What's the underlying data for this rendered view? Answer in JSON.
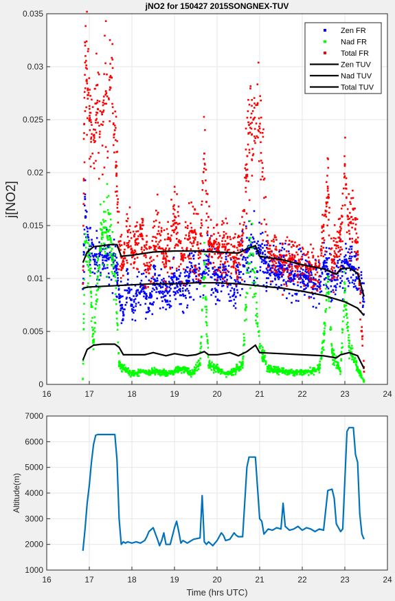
{
  "chart_data": [
    {
      "type": "scatter",
      "title": "jNO2 for 150427 2015SONGNEX-TUV",
      "xlabel": "",
      "ylabel": "j[NO2]",
      "xlim": [
        16,
        24
      ],
      "ylim": [
        0,
        0.035
      ],
      "xticks": [
        "16",
        "17",
        "18",
        "19",
        "20",
        "21",
        "22",
        "23",
        "24"
      ],
      "yticks": [
        "0",
        "0.005",
        "0.01",
        "0.015",
        "0.02",
        "0.025",
        "0.03",
        "0.035"
      ],
      "grid": true,
      "legend_position": "top-right",
      "series": [
        {
          "name": "Zen FR",
          "kind": "markers",
          "color": "#0000ff",
          "x": [
            16.85,
            16.9,
            17.0,
            17.1,
            17.2,
            17.3,
            17.4,
            17.5,
            17.6,
            17.7,
            17.8,
            17.9,
            18.0,
            18.2,
            18.4,
            18.6,
            18.8,
            19.0,
            19.2,
            19.4,
            19.6,
            19.8,
            20.0,
            20.2,
            20.4,
            20.6,
            20.8,
            21.0,
            21.2,
            21.4,
            21.6,
            21.8,
            22.0,
            22.2,
            22.4,
            22.5,
            22.7,
            22.9,
            23.0,
            23.2,
            23.35,
            23.45
          ],
          "y": [
            0.009,
            0.0175,
            0.0122,
            0.0118,
            0.012,
            0.0122,
            0.0121,
            0.012,
            0.0117,
            0.0085,
            0.0065,
            0.0095,
            0.0075,
            0.0092,
            0.0082,
            0.0098,
            0.0078,
            0.0105,
            0.0085,
            0.0112,
            0.0095,
            0.0118,
            0.0098,
            0.0109,
            0.0085,
            0.0118,
            0.0131,
            0.0125,
            0.0112,
            0.0103,
            0.0109,
            0.0102,
            0.0105,
            0.0098,
            0.0092,
            0.0115,
            0.0098,
            0.0108,
            0.0115,
            0.011,
            0.0095,
            0.0078
          ]
        },
        {
          "name": "Nad FR",
          "kind": "markers",
          "color": "#00ff00",
          "x": [
            16.85,
            16.9,
            17.0,
            17.1,
            17.2,
            17.3,
            17.4,
            17.5,
            17.6,
            17.7,
            17.8,
            17.9,
            18.0,
            18.2,
            18.4,
            18.6,
            18.8,
            19.0,
            19.2,
            19.4,
            19.6,
            19.7,
            19.8,
            20.0,
            20.2,
            20.4,
            20.6,
            20.75,
            20.85,
            21.0,
            21.2,
            21.4,
            21.6,
            21.8,
            22.0,
            22.2,
            22.4,
            22.5,
            22.6,
            22.7,
            22.9,
            23.0,
            23.1,
            23.3,
            23.45
          ],
          "y": [
            0.0005,
            0.0135,
            0.012,
            0.004,
            0.0102,
            0.0142,
            0.0148,
            0.0138,
            0.0105,
            0.0018,
            0.0015,
            0.0012,
            0.001,
            0.0012,
            0.0011,
            0.0013,
            0.001,
            0.0012,
            0.0015,
            0.001,
            0.002,
            0.0115,
            0.0018,
            0.0015,
            0.001,
            0.0013,
            0.0018,
            0.013,
            0.0122,
            0.0035,
            0.0015,
            0.0013,
            0.0012,
            0.0011,
            0.0012,
            0.0012,
            0.0015,
            0.004,
            0.0102,
            0.003,
            0.0012,
            0.0095,
            0.0035,
            0.0015,
            0.0003
          ]
        },
        {
          "name": "Total FR",
          "kind": "markers",
          "color": "#ff0000",
          "x": [
            16.85,
            16.9,
            17.0,
            17.1,
            17.2,
            17.3,
            17.4,
            17.5,
            17.6,
            17.7,
            17.8,
            17.9,
            18.0,
            18.2,
            18.4,
            18.6,
            18.8,
            19.0,
            19.2,
            19.4,
            19.6,
            19.7,
            19.8,
            20.0,
            20.2,
            20.4,
            20.6,
            20.75,
            20.85,
            20.95,
            21.2,
            21.4,
            21.6,
            21.8,
            22.0,
            22.2,
            22.4,
            22.5,
            22.6,
            22.7,
            22.9,
            23.0,
            23.1,
            23.2,
            23.3,
            23.45
          ],
          "y": [
            0.0095,
            0.0323,
            0.025,
            0.0235,
            0.026,
            0.0255,
            0.0275,
            0.028,
            0.024,
            0.0135,
            0.0112,
            0.0145,
            0.0125,
            0.0148,
            0.0105,
            0.0142,
            0.0115,
            0.0155,
            0.0118,
            0.0145,
            0.0125,
            0.0218,
            0.0135,
            0.0128,
            0.013,
            0.0115,
            0.0135,
            0.0245,
            0.025,
            0.0265,
            0.0125,
            0.0118,
            0.0115,
            0.0118,
            0.0112,
            0.0108,
            0.0112,
            0.0145,
            0.0185,
            0.0115,
            0.0135,
            0.0208,
            0.0145,
            0.0165,
            0.0125,
            0.0012
          ]
        },
        {
          "name": "Zen TUV",
          "kind": "line",
          "color": "#000000",
          "x": [
            16.85,
            16.95,
            17.1,
            17.3,
            17.5,
            17.65,
            17.75,
            18.0,
            18.5,
            19.0,
            19.5,
            20.0,
            20.5,
            20.7,
            20.9,
            21.0,
            21.5,
            22.0,
            22.5,
            22.8,
            22.9,
            23.1,
            23.3,
            23.45
          ],
          "y": [
            0.0115,
            0.0125,
            0.013,
            0.0131,
            0.0132,
            0.0132,
            0.0121,
            0.0122,
            0.0125,
            0.0126,
            0.0126,
            0.0125,
            0.0124,
            0.0128,
            0.0131,
            0.0121,
            0.0118,
            0.0113,
            0.0109,
            0.0104,
            0.0109,
            0.011,
            0.0105,
            0.0083
          ]
        },
        {
          "name": "Nad TUV",
          "kind": "line",
          "color": "#000000",
          "x": [
            16.85,
            17.0,
            17.5,
            18.0,
            18.5,
            19.0,
            19.5,
            20.0,
            20.5,
            21.0,
            21.5,
            22.0,
            22.5,
            23.0,
            23.3,
            23.45
          ],
          "y": [
            0.0091,
            0.0092,
            0.0093,
            0.0094,
            0.0095,
            0.0095,
            0.0096,
            0.0096,
            0.0095,
            0.0093,
            0.0091,
            0.0088,
            0.0084,
            0.0078,
            0.0072,
            0.0065
          ]
        },
        {
          "name": "Total TUV",
          "kind": "line",
          "color": "#000000",
          "x": [
            16.85,
            16.95,
            17.1,
            17.3,
            17.6,
            17.7,
            17.8,
            18.0,
            18.3,
            18.5,
            18.8,
            19.0,
            19.3,
            19.5,
            19.7,
            19.8,
            20.0,
            20.3,
            20.5,
            20.7,
            20.9,
            21.0,
            21.5,
            22.0,
            22.5,
            22.8,
            22.9,
            23.1,
            23.3,
            23.45
          ],
          "y": [
            0.0023,
            0.0033,
            0.0037,
            0.0038,
            0.0038,
            0.0035,
            0.0028,
            0.0028,
            0.0028,
            0.003,
            0.0027,
            0.0029,
            0.0027,
            0.0028,
            0.0031,
            0.0028,
            0.0028,
            0.003,
            0.0027,
            0.0031,
            0.0037,
            0.003,
            0.0029,
            0.0028,
            0.0027,
            0.0025,
            0.0028,
            0.003,
            0.0027,
            0.0015
          ]
        }
      ]
    },
    {
      "type": "line",
      "title": "",
      "xlabel": "Time (hrs UTC)",
      "ylabel": "Altitude(m)",
      "xlim": [
        16,
        24
      ],
      "ylim": [
        1000,
        7000
      ],
      "xticks": [
        "16",
        "17",
        "18",
        "19",
        "20",
        "21",
        "22",
        "23",
        "24"
      ],
      "yticks": [
        "1000",
        "2000",
        "3000",
        "4000",
        "5000",
        "6000",
        "7000"
      ],
      "grid": true,
      "series": [
        {
          "color": "#0072bd",
          "x": [
            16.85,
            16.9,
            16.95,
            17.0,
            17.05,
            17.1,
            17.15,
            17.2,
            17.4,
            17.6,
            17.65,
            17.7,
            17.75,
            17.8,
            17.85,
            17.9,
            18.0,
            18.1,
            18.2,
            18.3,
            18.35,
            18.4,
            18.5,
            18.6,
            18.65,
            18.7,
            18.75,
            18.8,
            18.9,
            19.0,
            19.05,
            19.1,
            19.15,
            19.2,
            19.3,
            19.45,
            19.6,
            19.65,
            19.7,
            19.75,
            19.8,
            19.9,
            20.0,
            20.1,
            20.15,
            20.2,
            20.3,
            20.4,
            20.45,
            20.5,
            20.6,
            20.7,
            20.75,
            20.8,
            20.9,
            20.95,
            21.0,
            21.05,
            21.1,
            21.2,
            21.3,
            21.4,
            21.5,
            21.55,
            21.6,
            21.7,
            21.8,
            21.9,
            22.0,
            22.1,
            22.2,
            22.3,
            22.4,
            22.5,
            22.6,
            22.7,
            22.75,
            22.8,
            22.9,
            22.95,
            23.0,
            23.05,
            23.1,
            23.2,
            23.25,
            23.3,
            23.35,
            23.4,
            23.45
          ],
          "y": [
            1750,
            2600,
            3600,
            4300,
            5200,
            5900,
            6250,
            6280,
            6280,
            6280,
            5300,
            3000,
            2000,
            2100,
            2050,
            2100,
            2050,
            2100,
            2050,
            2150,
            2300,
            2500,
            2650,
            2200,
            1950,
            2150,
            2450,
            2000,
            2000,
            2650,
            2900,
            2500,
            2050,
            2150,
            2050,
            2200,
            2250,
            3900,
            2100,
            2000,
            2100,
            1950,
            2150,
            2450,
            2350,
            2150,
            2200,
            2450,
            2350,
            2300,
            2300,
            5000,
            5400,
            5400,
            5400,
            4200,
            3000,
            2900,
            2400,
            2600,
            2550,
            2650,
            2600,
            3600,
            2700,
            2550,
            2600,
            2700,
            2550,
            2650,
            2600,
            2500,
            2600,
            2550,
            4100,
            4150,
            3800,
            2800,
            2500,
            2600,
            4500,
            6400,
            6550,
            6550,
            5500,
            5200,
            3200,
            2400,
            2200
          ]
        }
      ]
    }
  ]
}
